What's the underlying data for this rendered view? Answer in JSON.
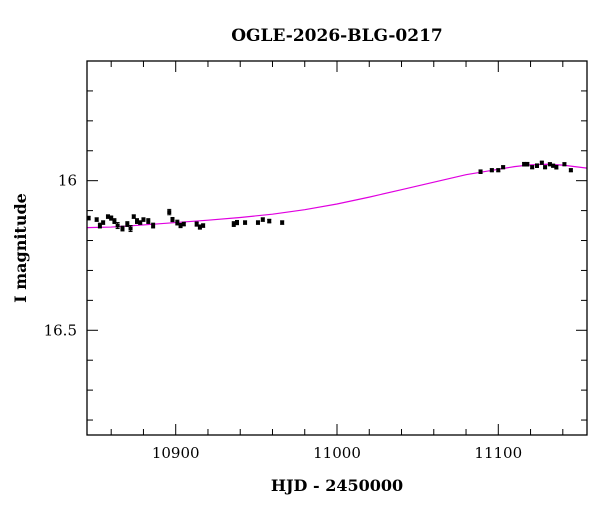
{
  "chart_data": {
    "type": "scatter",
    "title": "OGLE-2026-BLG-0217",
    "xlabel": "HJD - 2450000",
    "ylabel": "I magnitude",
    "xlim": [
      10845,
      11155
    ],
    "ylim": [
      16.85,
      15.6
    ],
    "y_inverted": true,
    "x_ticks": [
      10900,
      11000,
      11100
    ],
    "x_tick_labels": [
      "10900",
      "11000",
      "11100"
    ],
    "y_ticks": [
      16,
      16.5
    ],
    "y_tick_labels": [
      "16",
      "16.5"
    ],
    "grid": false,
    "colors": {
      "points": "#000000",
      "model": "#e000e0",
      "frame": "#000000"
    },
    "series": [
      {
        "kind": "points",
        "x": [
          10846,
          10851,
          10853,
          10855,
          10858,
          10860,
          10862,
          10864,
          10867,
          10870,
          10872,
          10874,
          10876,
          10878,
          10880,
          10883,
          10886,
          10896,
          10898,
          10901,
          10903,
          10905,
          10913,
          10915,
          10917,
          10936,
          10938,
          10943,
          10951,
          10954,
          10958,
          10966,
          11089,
          11096,
          11100,
          11103,
          11116,
          11118,
          11121,
          11124,
          11127,
          11129,
          11132,
          11134,
          11136,
          11141,
          11145
        ],
        "y": [
          16.125,
          16.13,
          16.15,
          16.14,
          16.12,
          16.125,
          16.135,
          16.15,
          16.16,
          16.145,
          16.16,
          16.12,
          16.135,
          16.14,
          16.13,
          16.135,
          16.15,
          16.105,
          16.13,
          16.14,
          16.15,
          16.145,
          16.145,
          16.155,
          16.15,
          16.145,
          16.14,
          16.14,
          16.14,
          16.13,
          16.135,
          16.14,
          15.97,
          15.965,
          15.965,
          15.955,
          15.945,
          15.945,
          15.955,
          15.95,
          15.94,
          15.955,
          15.945,
          15.95,
          15.955,
          15.945,
          15.965
        ],
        "yerr": [
          0.006,
          0.006,
          0.008,
          0.006,
          0.006,
          0.007,
          0.008,
          0.01,
          0.008,
          0.008,
          0.01,
          0.006,
          0.008,
          0.006,
          0.006,
          0.008,
          0.008,
          0.009,
          0.007,
          0.008,
          0.007,
          0.006,
          0.007,
          0.007,
          0.006,
          0.008,
          0.007,
          0.006,
          0.006,
          0.006,
          0.006,
          0.006,
          0.006,
          0.005,
          0.005,
          0.005,
          0.006,
          0.006,
          0.005,
          0.006,
          0.005,
          0.005,
          0.005,
          0.005,
          0.006,
          0.005,
          0.005
        ]
      },
      {
        "kind": "line",
        "x": [
          10845,
          10860,
          10880,
          10900,
          10920,
          10940,
          10960,
          10980,
          11000,
          11020,
          11040,
          11060,
          11080,
          11100,
          11110,
          11120,
          11130,
          11140,
          11155
        ],
        "y": [
          16.157,
          16.155,
          16.148,
          16.14,
          16.132,
          16.123,
          16.112,
          16.097,
          16.078,
          16.055,
          16.03,
          16.005,
          15.98,
          15.962,
          15.953,
          15.947,
          15.945,
          15.948,
          15.958
        ]
      }
    ]
  }
}
